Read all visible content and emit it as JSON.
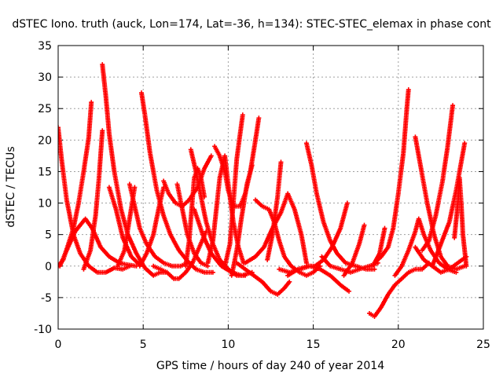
{
  "chart_data": {
    "type": "scatter",
    "title": "dSTEC Iono. truth (auck, Lon=174, Lat=-36, h=134): STEC-STEC_elemax in phase cont",
    "xlabel": "GPS time / hours of day 240 of year 2014",
    "ylabel": "dSTEC  / TECUs",
    "xlim": [
      0,
      25
    ],
    "ylim": [
      -10,
      35
    ],
    "xticks": [
      0,
      5,
      10,
      15,
      20,
      25
    ],
    "yticks": [
      -10,
      -5,
      0,
      5,
      10,
      15,
      20,
      25,
      30,
      35
    ],
    "grid": true,
    "marker": "+",
    "color": "#ff0000",
    "series": [
      {
        "points": [
          [
            0.0,
            22.0
          ],
          [
            0.2,
            17.0
          ],
          [
            0.5,
            10.5
          ],
          [
            0.9,
            5.0
          ],
          [
            1.3,
            2.0
          ],
          [
            1.8,
            0.0
          ],
          [
            2.3,
            -1.0
          ],
          [
            2.8,
            -1.0
          ],
          [
            3.3,
            -0.3
          ],
          [
            3.8,
            -0.5
          ],
          [
            4.2,
            0.0
          ]
        ]
      },
      {
        "points": [
          [
            0.0,
            0.0
          ],
          [
            0.3,
            1.0
          ],
          [
            0.6,
            3.5
          ],
          [
            0.9,
            6.0
          ],
          [
            1.2,
            10.0
          ],
          [
            1.5,
            15.0
          ],
          [
            1.8,
            20.5
          ],
          [
            1.95,
            26.0
          ]
        ]
      },
      {
        "points": [
          [
            0.1,
            0.0
          ],
          [
            0.5,
            2.5
          ],
          [
            1.0,
            5.5
          ],
          [
            1.6,
            7.5
          ],
          [
            2.0,
            6.0
          ],
          [
            2.5,
            3.0
          ],
          [
            3.0,
            1.5
          ],
          [
            3.6,
            0.5
          ],
          [
            4.1,
            0.2
          ],
          [
            4.6,
            0.0
          ]
        ]
      },
      {
        "points": [
          [
            1.5,
            -0.5
          ],
          [
            1.9,
            2.5
          ],
          [
            2.2,
            8.0
          ],
          [
            2.4,
            14.0
          ],
          [
            2.6,
            21.5
          ]
        ]
      },
      {
        "points": [
          [
            2.6,
            32.0
          ],
          [
            2.8,
            27.0
          ],
          [
            3.0,
            21.0
          ],
          [
            3.3,
            15.0
          ],
          [
            3.7,
            9.0
          ],
          [
            4.1,
            5.0
          ],
          [
            4.6,
            2.0
          ],
          [
            5.1,
            -0.3
          ],
          [
            5.6,
            -1.5
          ],
          [
            6.0,
            -1.0
          ],
          [
            6.4,
            -1.0
          ]
        ]
      },
      {
        "points": [
          [
            3.0,
            12.5
          ],
          [
            3.4,
            9.0
          ],
          [
            3.8,
            4.5
          ],
          [
            4.3,
            1.5
          ],
          [
            4.8,
            0.2
          ]
        ]
      },
      {
        "points": [
          [
            3.5,
            0.0
          ],
          [
            3.9,
            2.5
          ],
          [
            4.2,
            7.5
          ],
          [
            4.5,
            12.5
          ]
        ]
      },
      {
        "points": [
          [
            4.2,
            13.0
          ],
          [
            4.5,
            9.5
          ],
          [
            4.8,
            6.0
          ],
          [
            5.2,
            3.5
          ],
          [
            5.7,
            1.5
          ],
          [
            6.2,
            0.5
          ],
          [
            6.7,
            0.0
          ],
          [
            7.2,
            0.0
          ],
          [
            7.6,
            0.5
          ]
        ]
      },
      {
        "points": [
          [
            4.9,
            27.5
          ],
          [
            5.1,
            24.0
          ],
          [
            5.4,
            18.0
          ],
          [
            5.8,
            12.0
          ],
          [
            6.2,
            8.0
          ],
          [
            6.6,
            5.0
          ],
          [
            7.1,
            2.5
          ],
          [
            7.6,
            0.8
          ],
          [
            8.1,
            -0.5
          ],
          [
            8.6,
            -1.0
          ],
          [
            9.1,
            -1.0
          ]
        ]
      },
      {
        "points": [
          [
            4.8,
            0.0
          ],
          [
            5.2,
            2.0
          ],
          [
            5.6,
            5.0
          ],
          [
            5.9,
            9.0
          ],
          [
            6.2,
            12.5
          ]
        ]
      },
      {
        "points": [
          [
            6.2,
            13.5
          ],
          [
            6.5,
            11.5
          ],
          [
            6.9,
            10.0
          ],
          [
            7.3,
            9.5
          ],
          [
            7.7,
            10.5
          ],
          [
            8.2,
            12.5
          ],
          [
            8.6,
            15.5
          ],
          [
            9.0,
            17.5
          ]
        ]
      },
      {
        "points": [
          [
            7.0,
            13.0
          ],
          [
            7.3,
            9.0
          ],
          [
            7.6,
            5.0
          ],
          [
            8.0,
            2.0
          ],
          [
            8.4,
            0.5
          ],
          [
            8.8,
            0.0
          ]
        ]
      },
      {
        "points": [
          [
            5.6,
            0.0
          ],
          [
            6.0,
            -0.5
          ],
          [
            6.4,
            -1.0
          ],
          [
            6.8,
            -2.0
          ],
          [
            7.1,
            -2.0
          ],
          [
            7.5,
            -1.0
          ],
          [
            7.9,
            0.5
          ],
          [
            8.3,
            3.0
          ],
          [
            8.7,
            5.5
          ]
        ]
      },
      {
        "points": [
          [
            7.5,
            0.0
          ],
          [
            7.7,
            4.0
          ],
          [
            7.85,
            9.0
          ],
          [
            8.0,
            14.0
          ],
          [
            8.2,
            15.5
          ],
          [
            8.4,
            14.0
          ],
          [
            8.6,
            11.0
          ]
        ]
      },
      {
        "points": [
          [
            7.8,
            18.5
          ],
          [
            8.1,
            15.0
          ],
          [
            8.4,
            11.0
          ],
          [
            8.7,
            7.0
          ],
          [
            9.1,
            3.5
          ],
          [
            9.5,
            1.0
          ],
          [
            10.0,
            -0.5
          ],
          [
            10.5,
            -1.5
          ],
          [
            11.0,
            -1.5
          ]
        ]
      },
      {
        "points": [
          [
            8.0,
            9.0
          ],
          [
            8.5,
            5.0
          ],
          [
            9.0,
            2.0
          ],
          [
            9.6,
            0.0
          ],
          [
            10.2,
            -1.0
          ],
          [
            10.8,
            -1.5
          ],
          [
            11.4,
            -1.0
          ]
        ]
      },
      {
        "points": [
          [
            8.8,
            0.5
          ],
          [
            9.1,
            4.0
          ],
          [
            9.3,
            9.0
          ],
          [
            9.5,
            14.0
          ],
          [
            9.8,
            17.5
          ],
          [
            10.0,
            13.0
          ],
          [
            10.3,
            7.0
          ],
          [
            10.6,
            3.0
          ],
          [
            10.9,
            0.5
          ]
        ]
      },
      {
        "points": [
          [
            9.2,
            19.0
          ],
          [
            9.5,
            17.5
          ],
          [
            9.8,
            15.0
          ],
          [
            10.0,
            12.0
          ],
          [
            10.3,
            9.5
          ],
          [
            10.7,
            9.5
          ],
          [
            11.0,
            11.5
          ],
          [
            11.3,
            15.0
          ],
          [
            11.6,
            20.0
          ],
          [
            11.8,
            23.5
          ]
        ]
      },
      {
        "points": [
          [
            9.8,
            0.0
          ],
          [
            10.1,
            3.5
          ],
          [
            10.3,
            10.0
          ],
          [
            10.5,
            17.0
          ],
          [
            10.7,
            21.0
          ],
          [
            10.85,
            24.0
          ]
        ]
      },
      {
        "points": [
          [
            10.2,
            -1.5
          ],
          [
            10.5,
            2.5
          ],
          [
            10.8,
            8.0
          ],
          [
            11.1,
            13.0
          ],
          [
            11.4,
            16.0
          ]
        ]
      },
      {
        "points": [
          [
            11.6,
            10.5
          ],
          [
            12.0,
            9.5
          ],
          [
            12.4,
            9.0
          ],
          [
            12.7,
            7.0
          ],
          [
            13.0,
            4.0
          ],
          [
            13.3,
            1.5
          ],
          [
            13.7,
            0.0
          ],
          [
            14.2,
            -1.0
          ],
          [
            14.6,
            -1.5
          ],
          [
            15.0,
            -1.0
          ],
          [
            15.4,
            0.0
          ]
        ]
      },
      {
        "points": [
          [
            10.5,
            0.5
          ],
          [
            11.0,
            -0.5
          ],
          [
            11.5,
            -1.5
          ],
          [
            12.0,
            -2.5
          ],
          [
            12.5,
            -4.0
          ],
          [
            12.9,
            -4.5
          ],
          [
            13.3,
            -3.5
          ],
          [
            13.6,
            -2.5
          ]
        ]
      },
      {
        "points": [
          [
            12.3,
            1.0
          ],
          [
            12.6,
            5.0
          ],
          [
            12.9,
            11.0
          ],
          [
            13.1,
            16.5
          ]
        ]
      },
      {
        "points": [
          [
            11.0,
            0.5
          ],
          [
            11.6,
            1.5
          ],
          [
            12.1,
            3.0
          ],
          [
            12.6,
            6.0
          ],
          [
            13.1,
            8.5
          ],
          [
            13.5,
            11.5
          ],
          [
            13.9,
            9.0
          ],
          [
            14.3,
            5.0
          ],
          [
            14.6,
            0.5
          ]
        ]
      },
      {
        "points": [
          [
            13.0,
            -0.5
          ],
          [
            13.6,
            -1.0
          ],
          [
            14.2,
            -0.5
          ],
          [
            14.8,
            0.0
          ],
          [
            15.4,
            -0.5
          ],
          [
            16.0,
            -1.5
          ],
          [
            16.6,
            -3.0
          ],
          [
            17.1,
            -4.0
          ]
        ]
      },
      {
        "points": [
          [
            14.6,
            19.5
          ],
          [
            14.9,
            16.0
          ],
          [
            15.2,
            11.5
          ],
          [
            15.6,
            7.0
          ],
          [
            16.0,
            4.0
          ],
          [
            16.4,
            2.0
          ],
          [
            16.9,
            0.5
          ],
          [
            17.5,
            0.0
          ],
          [
            18.1,
            -0.5
          ],
          [
            18.6,
            -0.5
          ]
        ]
      },
      {
        "points": [
          [
            13.5,
            -1.5
          ],
          [
            14.1,
            -0.5
          ],
          [
            14.7,
            0.0
          ],
          [
            15.1,
            0.0
          ],
          [
            15.6,
            1.0
          ],
          [
            16.1,
            3.0
          ],
          [
            16.6,
            6.0
          ],
          [
            17.0,
            10.0
          ]
        ]
      },
      {
        "points": [
          [
            15.5,
            1.5
          ],
          [
            16.0,
            0.0
          ],
          [
            16.6,
            -0.5
          ],
          [
            17.2,
            -1.0
          ],
          [
            17.7,
            -0.5
          ],
          [
            18.3,
            0.0
          ],
          [
            18.8,
            0.5
          ]
        ]
      },
      {
        "points": [
          [
            16.8,
            -1.5
          ],
          [
            17.3,
            0.5
          ],
          [
            17.7,
            3.5
          ],
          [
            18.0,
            6.5
          ]
        ]
      },
      {
        "points": [
          [
            18.3,
            -7.5
          ],
          [
            18.6,
            -8.0
          ],
          [
            19.0,
            -6.5
          ],
          [
            19.4,
            -4.5
          ],
          [
            19.8,
            -3.0
          ],
          [
            20.2,
            -2.0
          ],
          [
            20.6,
            -1.0
          ],
          [
            21.0,
            -0.5
          ],
          [
            21.4,
            -0.5
          ],
          [
            21.8,
            0.5
          ]
        ]
      },
      {
        "points": [
          [
            18.5,
            0.0
          ],
          [
            18.9,
            2.0
          ],
          [
            19.2,
            6.0
          ]
        ]
      },
      {
        "points": [
          [
            18.6,
            0.5
          ],
          [
            19.0,
            1.5
          ],
          [
            19.4,
            3.0
          ],
          [
            19.7,
            6.0
          ],
          [
            20.0,
            11.5
          ],
          [
            20.3,
            18.0
          ],
          [
            20.5,
            25.0
          ],
          [
            20.6,
            28.0
          ]
        ]
      },
      {
        "points": [
          [
            19.8,
            -1.5
          ],
          [
            20.2,
            0.0
          ],
          [
            20.6,
            2.5
          ],
          [
            21.0,
            5.5
          ],
          [
            21.2,
            7.5
          ],
          [
            21.5,
            5.0
          ],
          [
            21.9,
            2.5
          ],
          [
            22.4,
            0.5
          ],
          [
            22.9,
            -0.5
          ],
          [
            23.4,
            -1.0
          ]
        ]
      },
      {
        "points": [
          [
            21.0,
            20.5
          ],
          [
            21.3,
            16.0
          ],
          [
            21.7,
            10.0
          ],
          [
            22.1,
            5.0
          ],
          [
            22.5,
            1.5
          ],
          [
            22.9,
            0.0
          ],
          [
            23.4,
            -0.5
          ],
          [
            23.9,
            0.0
          ]
        ]
      },
      {
        "points": [
          [
            21.4,
            2.5
          ],
          [
            21.8,
            4.0
          ],
          [
            22.2,
            8.0
          ],
          [
            22.6,
            13.5
          ],
          [
            22.9,
            19.0
          ],
          [
            23.2,
            25.5
          ]
        ]
      },
      {
        "points": [
          [
            21.0,
            3.0
          ],
          [
            21.5,
            1.0
          ],
          [
            22.0,
            0.0
          ],
          [
            22.5,
            -1.0
          ],
          [
            23.0,
            -0.5
          ],
          [
            23.5,
            0.5
          ],
          [
            24.0,
            1.5
          ]
        ]
      },
      {
        "points": [
          [
            22.0,
            0.0
          ],
          [
            22.5,
            3.5
          ],
          [
            23.0,
            7.0
          ],
          [
            23.4,
            12.0
          ],
          [
            23.7,
            16.5
          ],
          [
            23.9,
            19.5
          ]
        ]
      },
      {
        "points": [
          [
            23.3,
            4.5
          ],
          [
            23.5,
            10.0
          ],
          [
            23.6,
            14.0
          ],
          [
            23.7,
            10.0
          ],
          [
            23.8,
            5.0
          ],
          [
            24.0,
            0.0
          ]
        ]
      }
    ]
  }
}
